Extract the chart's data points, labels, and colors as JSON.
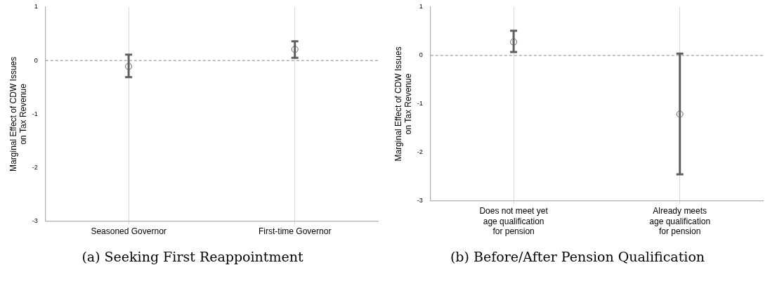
{
  "chart_data": [
    {
      "type": "scatter",
      "title": "(a) Seeking First Reappointment",
      "ylabel": "Marginal Effect of CDW Issues\non Tax Revenue",
      "categories": [
        "Seasoned Governor",
        "First-time Governor"
      ],
      "series": [
        {
          "color": "#606060",
          "values": [
            -0.11,
            0.21
          ],
          "errors": [
            [
              -0.31,
              0.11
            ],
            [
              0.05,
              0.36
            ]
          ]
        }
      ],
      "ylim": [
        -3,
        1
      ],
      "yticks": [
        -3,
        -2,
        -1,
        0,
        1
      ],
      "grid": "x",
      "marker": "circle",
      "legend": false,
      "ref_lines": [
        {
          "axis": "y",
          "value": 0,
          "color": "#a0a0a0",
          "line_style": "dashed"
        }
      ]
    },
    {
      "type": "scatter",
      "title": "(b) Before/After Pension Qualification",
      "ylabel": "Marginal Effect of CDW Issues\non Tax Revenue",
      "categories": [
        "Does not meet yet\nage qualification\nfor pension",
        "Already meets\nage qualification\nfor pension"
      ],
      "series": [
        {
          "color": "#606060",
          "values": [
            0.28,
            -1.21
          ],
          "errors": [
            [
              0.07,
              0.51
            ],
            [
              -2.45,
              0.04
            ]
          ]
        }
      ],
      "ylim": [
        -3,
        1
      ],
      "yticks": [
        -3,
        -2,
        -1,
        0,
        1
      ],
      "grid": "x",
      "marker": "circle",
      "legend": false,
      "ref_lines": [
        {
          "axis": "y",
          "value": 0,
          "color": "#a0a0a0",
          "line_style": "dashed"
        }
      ]
    }
  ]
}
